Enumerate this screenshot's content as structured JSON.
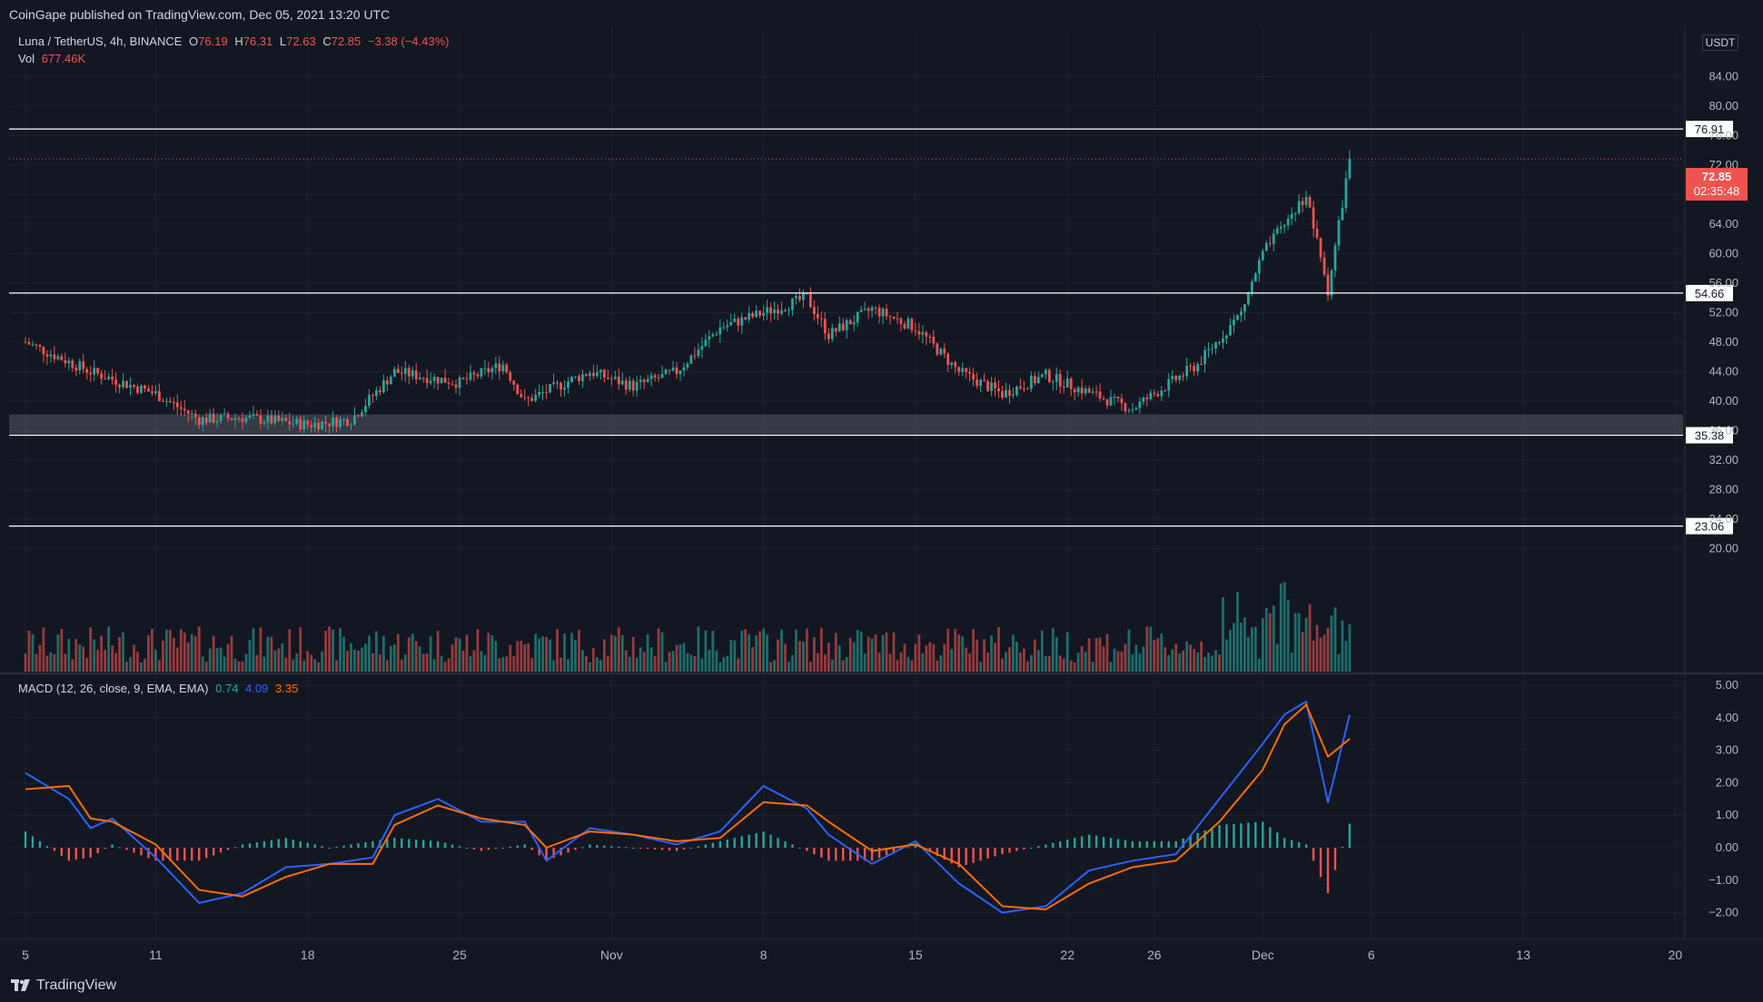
{
  "header": {
    "publisher_line": "CoinGape published on TradingView.com, Dec 05, 2021 13:20 UTC"
  },
  "footer": {
    "brand": "TradingView"
  },
  "legend": {
    "symbol": "Luna / TetherUS, 4h, BINANCE",
    "o_label": "O",
    "o": "76.19",
    "h_label": "H",
    "h": "76.31",
    "l_label": "L",
    "l": "72.63",
    "c_label": "C",
    "c": "72.85",
    "change": "−3.38 (−4.43%)",
    "vol_label": "Vol",
    "vol": "677.46K"
  },
  "macd_legend": {
    "label": "MACD (12, 26, close, 9, EMA, EMA)",
    "hist": "0.74",
    "macd": "4.09",
    "signal": "3.35"
  },
  "price_axis_unit": "USDT",
  "current_price": {
    "value": "72.85",
    "countdown": "02:35:48"
  },
  "colors": {
    "up": "#26a69a",
    "down": "#ef5350",
    "macd": "#2962ff",
    "signal": "#ff6d00",
    "bg": "#131722",
    "grid": "#1e222d"
  },
  "chart_data": [
    {
      "type": "candlestick",
      "title": "Luna / TetherUS, 4h, BINANCE",
      "y_ticks": [
        "84.00",
        "80.00",
        "76.00",
        "72.00",
        "68.00",
        "64.00",
        "60.00",
        "56.00",
        "52.00",
        "48.00",
        "44.00",
        "40.00",
        "36.00",
        "32.00",
        "28.00",
        "24.00",
        "20.00"
      ],
      "ylim": [
        17.5,
        88
      ],
      "x_ticks": [
        "5",
        "11",
        "18",
        "25",
        "Nov",
        "8",
        "15",
        "22",
        "26",
        "Dec",
        "6",
        "13",
        "20"
      ],
      "horizontal_levels": [
        76.91,
        54.66,
        35.38,
        23.06
      ],
      "level_labels": [
        "76.91",
        "54.66",
        "35.38",
        "23.06"
      ],
      "support_zone": [
        35.38,
        38.2
      ],
      "last_price": 72.85,
      "approx_close_path": [
        [
          "Oct 5",
          48
        ],
        [
          "Oct 8",
          44
        ],
        [
          "Oct 11",
          41
        ],
        [
          "Oct 13",
          37.5
        ],
        [
          "Oct 15",
          37.8
        ],
        [
          "Oct 18",
          36.8
        ],
        [
          "Oct 20",
          37.5
        ],
        [
          "Oct 22",
          44
        ],
        [
          "Oct 25",
          42.5
        ],
        [
          "Oct 27",
          45
        ],
        [
          "Oct 28",
          40
        ],
        [
          "Oct 31",
          44
        ],
        [
          "Nov 2",
          42
        ],
        [
          "Nov 4",
          44
        ],
        [
          "Nov 6",
          50
        ],
        [
          "Nov 8",
          52
        ],
        [
          "Nov 10",
          54
        ],
        [
          "Nov 11",
          49
        ],
        [
          "Nov 13",
          52.5
        ],
        [
          "Nov 15",
          50
        ],
        [
          "Nov 17",
          44
        ],
        [
          "Nov 19",
          41
        ],
        [
          "Nov 21",
          43.5
        ],
        [
          "Nov 24",
          40
        ],
        [
          "Nov 25",
          39
        ],
        [
          "Nov 26",
          41
        ],
        [
          "Nov 28",
          45
        ],
        [
          "Nov 30",
          52
        ],
        [
          "Dec 1",
          60
        ],
        [
          "Dec 2",
          64
        ],
        [
          "Dec 3",
          68
        ],
        [
          "Dec 4",
          55
        ],
        [
          "Dec 5",
          72.85
        ]
      ],
      "volume": {
        "last": "677.46K"
      }
    },
    {
      "type": "line",
      "title": "MACD (12, 26, close, 9, EMA, EMA)",
      "y_ticks": [
        "5.00",
        "4.00",
        "3.00",
        "2.00",
        "1.00",
        "0.00",
        "−1.00",
        "−2.00"
      ],
      "ylim": [
        -2.8,
        5.4
      ],
      "series": [
        {
          "name": "MACD",
          "values": [
            [
              "Oct 5",
              2.3
            ],
            [
              "Oct 7",
              1.5
            ],
            [
              "Oct 8",
              0.6
            ],
            [
              "Oct 9",
              0.9
            ],
            [
              "Oct 11",
              -0.3
            ],
            [
              "Oct 13",
              -1.7
            ],
            [
              "Oct 15",
              -1.4
            ],
            [
              "Oct 17",
              -0.6
            ],
            [
              "Oct 19",
              -0.5
            ],
            [
              "Oct 21",
              -0.3
            ],
            [
              "Oct 22",
              1.0
            ],
            [
              "Oct 24",
              1.5
            ],
            [
              "Oct 26",
              0.8
            ],
            [
              "Oct 28",
              0.8
            ],
            [
              "Oct 29",
              -0.4
            ],
            [
              "Oct 31",
              0.6
            ],
            [
              "Nov 2",
              0.4
            ],
            [
              "Nov 4",
              0.1
            ],
            [
              "Nov 6",
              0.5
            ],
            [
              "Nov 8",
              1.9
            ],
            [
              "Nov 10",
              1.2
            ],
            [
              "Nov 11",
              0.4
            ],
            [
              "Nov 13",
              -0.5
            ],
            [
              "Nov 15",
              0.2
            ],
            [
              "Nov 17",
              -1.1
            ],
            [
              "Nov 19",
              -2.0
            ],
            [
              "Nov 21",
              -1.8
            ],
            [
              "Nov 23",
              -0.7
            ],
            [
              "Nov 25",
              -0.4
            ],
            [
              "Nov 27",
              -0.2
            ],
            [
              "Nov 29",
              1.5
            ],
            [
              "Dec 1",
              3.2
            ],
            [
              "Dec 2",
              4.1
            ],
            [
              "Dec 3",
              4.5
            ],
            [
              "Dec 4",
              1.4
            ],
            [
              "Dec 5",
              4.09
            ]
          ]
        },
        {
          "name": "Signal",
          "values": [
            [
              "Oct 5",
              1.8
            ],
            [
              "Oct 7",
              1.9
            ],
            [
              "Oct 8",
              0.9
            ],
            [
              "Oct 9",
              0.8
            ],
            [
              "Oct 11",
              0.1
            ],
            [
              "Oct 13",
              -1.3
            ],
            [
              "Oct 15",
              -1.5
            ],
            [
              "Oct 17",
              -0.9
            ],
            [
              "Oct 19",
              -0.5
            ],
            [
              "Oct 21",
              -0.5
            ],
            [
              "Oct 22",
              0.7
            ],
            [
              "Oct 24",
              1.3
            ],
            [
              "Oct 26",
              0.9
            ],
            [
              "Oct 28",
              0.7
            ],
            [
              "Oct 29",
              0.0
            ],
            [
              "Oct 31",
              0.5
            ],
            [
              "Nov 2",
              0.4
            ],
            [
              "Nov 4",
              0.2
            ],
            [
              "Nov 6",
              0.3
            ],
            [
              "Nov 8",
              1.4
            ],
            [
              "Nov 10",
              1.3
            ],
            [
              "Nov 11",
              0.8
            ],
            [
              "Nov 13",
              -0.1
            ],
            [
              "Nov 15",
              0.1
            ],
            [
              "Nov 17",
              -0.5
            ],
            [
              "Nov 19",
              -1.8
            ],
            [
              "Nov 21",
              -1.9
            ],
            [
              "Nov 23",
              -1.1
            ],
            [
              "Nov 25",
              -0.6
            ],
            [
              "Nov 27",
              -0.4
            ],
            [
              "Nov 29",
              0.8
            ],
            [
              "Dec 1",
              2.4
            ],
            [
              "Dec 2",
              3.8
            ],
            [
              "Dec 3",
              4.4
            ],
            [
              "Dec 4",
              2.8
            ],
            [
              "Dec 5",
              3.35
            ]
          ]
        }
      ]
    }
  ]
}
